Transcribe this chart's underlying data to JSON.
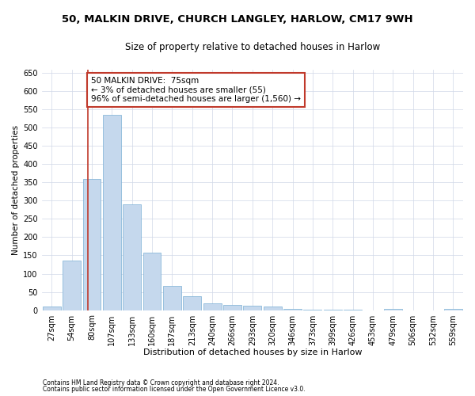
{
  "title1": "50, MALKIN DRIVE, CHURCH LANGLEY, HARLOW, CM17 9WH",
  "title2": "Size of property relative to detached houses in Harlow",
  "xlabel": "Distribution of detached houses by size in Harlow",
  "ylabel": "Number of detached properties",
  "categories": [
    "27sqm",
    "54sqm",
    "80sqm",
    "107sqm",
    "133sqm",
    "160sqm",
    "187sqm",
    "213sqm",
    "240sqm",
    "266sqm",
    "293sqm",
    "320sqm",
    "346sqm",
    "373sqm",
    "399sqm",
    "426sqm",
    "453sqm",
    "479sqm",
    "506sqm",
    "532sqm",
    "559sqm"
  ],
  "values": [
    10,
    135,
    360,
    535,
    290,
    157,
    67,
    38,
    18,
    15,
    13,
    9,
    3,
    2,
    2,
    1,
    0,
    3,
    0,
    0,
    3
  ],
  "bar_color": "#c5d8ed",
  "bar_edge_color": "#7bafd4",
  "marker_color": "#c0392b",
  "annotation_text": "50 MALKIN DRIVE:  75sqm\n← 3% of detached houses are smaller (55)\n96% of semi-detached houses are larger (1,560) →",
  "annotation_box_color": "#ffffff",
  "annotation_box_edge_color": "#c0392b",
  "ylim": [
    0,
    660
  ],
  "yticks": [
    0,
    50,
    100,
    150,
    200,
    250,
    300,
    350,
    400,
    450,
    500,
    550,
    600,
    650
  ],
  "footnote1": "Contains HM Land Registry data © Crown copyright and database right 2024.",
  "footnote2": "Contains public sector information licensed under the Open Government Licence v3.0.",
  "bg_color": "#ffffff",
  "grid_color": "#d0d8e8",
  "title1_fontsize": 9.5,
  "title2_fontsize": 8.5,
  "tick_fontsize": 7,
  "xlabel_fontsize": 8,
  "ylabel_fontsize": 7.5,
  "annotation_fontsize": 7.5,
  "footnote_fontsize": 5.5
}
